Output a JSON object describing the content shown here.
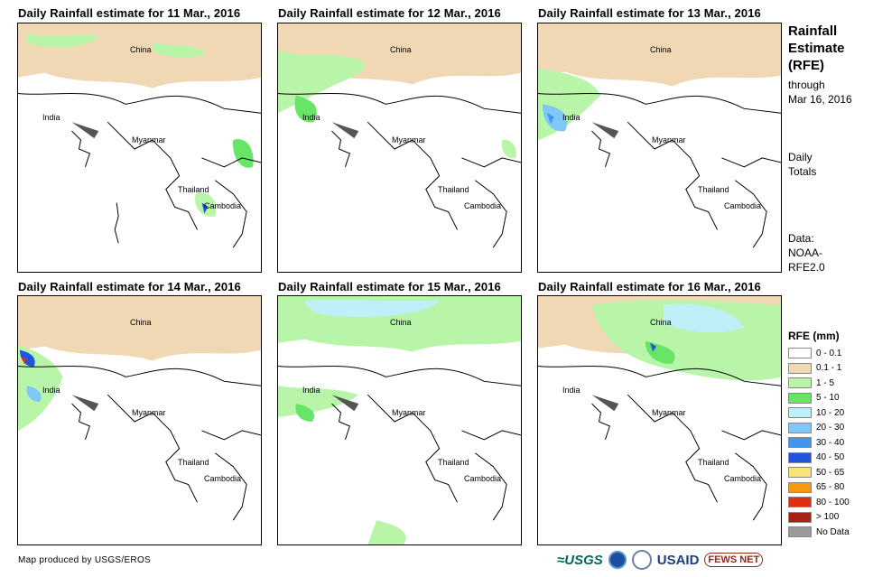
{
  "panels": [
    {
      "title": "Daily Rainfall estimate for 11 Mar., 2016"
    },
    {
      "title": "Daily Rainfall estimate for 12 Mar., 2016"
    },
    {
      "title": "Daily Rainfall estimate for 13 Mar., 2016"
    },
    {
      "title": "Daily Rainfall estimate for 14 Mar., 2016"
    },
    {
      "title": "Daily Rainfall estimate for 15 Mar., 2016"
    },
    {
      "title": "Daily Rainfall estimate for 16 Mar., 2016"
    }
  ],
  "map_labels": {
    "china": "China",
    "india": "India",
    "myanmar": "Myanmar",
    "thailand": "Thailand",
    "cambodia": "Cambodia"
  },
  "side": {
    "title_line1": "Rainfall",
    "title_line2": "Estimate",
    "title_line3": "(RFE)",
    "through": "through",
    "date": "Mar 16, 2016",
    "daily": "Daily",
    "totals": "Totals",
    "data_label": "Data:",
    "source_line1": "NOAA-",
    "source_line2": "RFE2.0"
  },
  "legend": {
    "title": "RFE (mm)",
    "items": [
      {
        "label": "0 - 0.1",
        "color": "#ffffff"
      },
      {
        "label": "0.1 - 1",
        "color": "#f1d8b5"
      },
      {
        "label": "1 - 5",
        "color": "#b9f5a8"
      },
      {
        "label": "5 - 10",
        "color": "#66e566"
      },
      {
        "label": "10 - 20",
        "color": "#bff0fa"
      },
      {
        "label": "20 - 30",
        "color": "#7fc8f8"
      },
      {
        "label": "30 - 40",
        "color": "#3f96f0"
      },
      {
        "label": "40 - 50",
        "color": "#1f56e0"
      },
      {
        "label": "50 - 65",
        "color": "#fae27a"
      },
      {
        "label": "65 - 80",
        "color": "#f59a10"
      },
      {
        "label": "80 - 100",
        "color": "#e0300f"
      },
      {
        "label": "> 100",
        "color": "#a8201a"
      },
      {
        "label": "No Data",
        "color": "#9a9a9a"
      }
    ]
  },
  "footer": "Map produced by USGS/EROS",
  "logos": {
    "usgs": "≈USGS",
    "usaid": "USAID",
    "fews": "FEWS NET"
  }
}
